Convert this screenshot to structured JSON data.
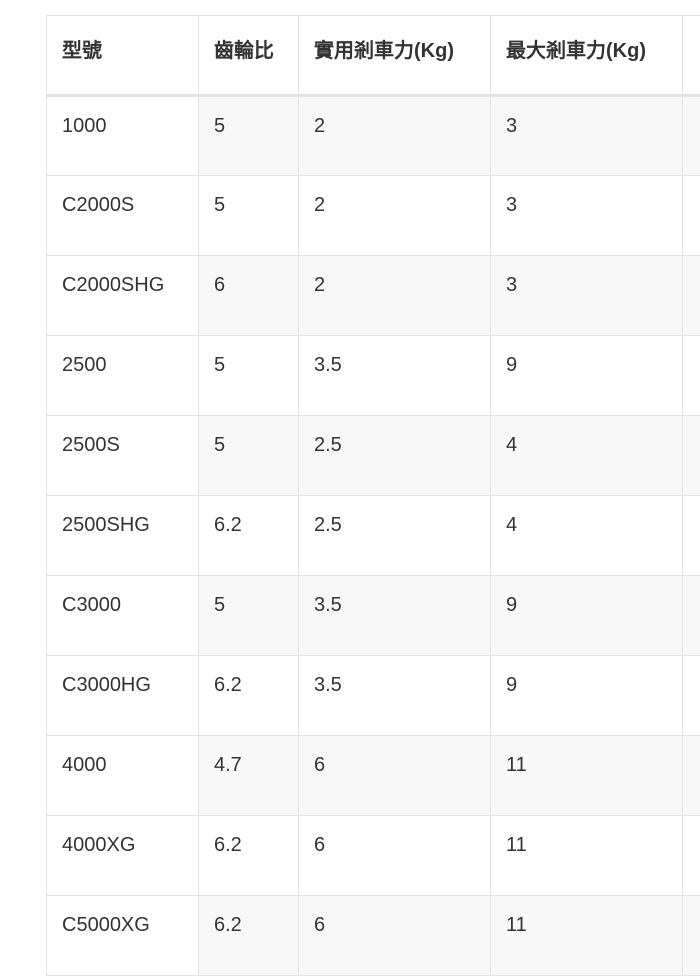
{
  "table": {
    "headers": [
      "型號",
      "齒輪比",
      "實用剎車力(Kg)",
      "最大剎車力(Kg)",
      ""
    ],
    "rows": [
      [
        "1000",
        "5",
        "2",
        "3"
      ],
      [
        "C2000S",
        "5",
        "2",
        "3"
      ],
      [
        "C2000SHG",
        "6",
        "2",
        "3"
      ],
      [
        "2500",
        "5",
        "3.5",
        "9"
      ],
      [
        "2500S",
        "5",
        "2.5",
        "4"
      ],
      [
        "2500SHG",
        "6.2",
        "2.5",
        "4"
      ],
      [
        "C3000",
        "5",
        "3.5",
        "9"
      ],
      [
        "C3000HG",
        "6.2",
        "3.5",
        "9"
      ],
      [
        "4000",
        "4.7",
        "6",
        "11"
      ],
      [
        "4000XG",
        "6.2",
        "6",
        "11"
      ],
      [
        "C5000XG",
        "6.2",
        "6",
        "11"
      ]
    ]
  }
}
